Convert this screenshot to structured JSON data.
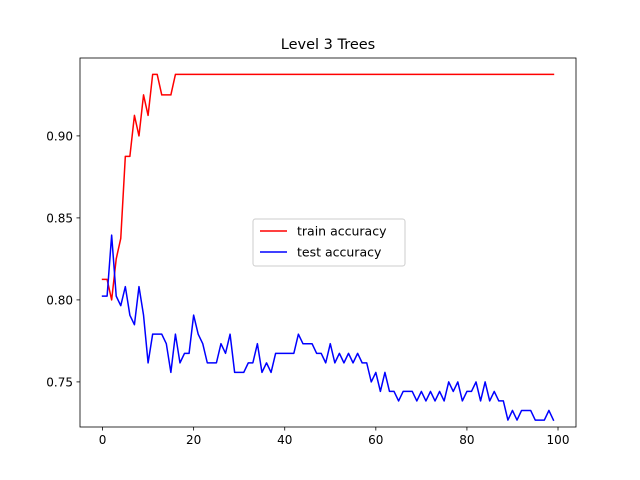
{
  "chart_data": {
    "type": "line",
    "title": "Level 3 Trees",
    "xlabel": "",
    "ylabel": "",
    "xlim": [
      -4.95,
      103.95
    ],
    "ylim": [
      0.7225,
      0.9475
    ],
    "xticks": [
      0,
      20,
      40,
      60,
      80,
      100
    ],
    "xtick_labels": [
      "0",
      "20",
      "40",
      "60",
      "80",
      "100"
    ],
    "yticks": [
      0.75,
      0.8,
      0.85,
      0.9
    ],
    "ytick_labels": [
      "0.75",
      "0.80",
      "0.85",
      "0.90"
    ],
    "grid": false,
    "legend_position": "center",
    "series": [
      {
        "name": "train accuracy",
        "color": "#ff0000",
        "x": [
          0,
          1,
          2,
          3,
          4,
          5,
          6,
          7,
          8,
          9,
          10,
          11,
          12,
          13,
          14,
          15,
          16,
          17,
          18,
          19,
          20,
          21,
          22,
          23,
          24,
          25,
          26,
          27,
          28,
          29,
          30,
          31,
          32,
          33,
          34,
          35,
          36,
          37,
          38,
          39,
          40,
          41,
          42,
          43,
          44,
          45,
          46,
          47,
          48,
          49,
          50,
          51,
          52,
          53,
          54,
          55,
          56,
          57,
          58,
          59,
          60,
          61,
          62,
          63,
          64,
          65,
          66,
          67,
          68,
          69,
          70,
          71,
          72,
          73,
          74,
          75,
          76,
          77,
          78,
          79,
          80,
          81,
          82,
          83,
          84,
          85,
          86,
          87,
          88,
          89,
          90,
          91,
          92,
          93,
          94,
          95,
          96,
          97,
          98,
          99
        ],
        "values": [
          0.8125,
          0.8125,
          0.8,
          0.825,
          0.8375,
          0.8875,
          0.8875,
          0.9125,
          0.9,
          0.925,
          0.9125,
          0.9375,
          0.9375,
          0.925,
          0.925,
          0.925,
          0.9375,
          0.9375,
          0.9375,
          0.9375,
          0.9375,
          0.9375,
          0.9375,
          0.9375,
          0.9375,
          0.9375,
          0.9375,
          0.9375,
          0.9375,
          0.9375,
          0.9375,
          0.9375,
          0.9375,
          0.9375,
          0.9375,
          0.9375,
          0.9375,
          0.9375,
          0.9375,
          0.9375,
          0.9375,
          0.9375,
          0.9375,
          0.9375,
          0.9375,
          0.9375,
          0.9375,
          0.9375,
          0.9375,
          0.9375,
          0.9375,
          0.9375,
          0.9375,
          0.9375,
          0.9375,
          0.9375,
          0.9375,
          0.9375,
          0.9375,
          0.9375,
          0.9375,
          0.9375,
          0.9375,
          0.9375,
          0.9375,
          0.9375,
          0.9375,
          0.9375,
          0.9375,
          0.9375,
          0.9375,
          0.9375,
          0.9375,
          0.9375,
          0.9375,
          0.9375,
          0.9375,
          0.9375,
          0.9375,
          0.9375,
          0.9375,
          0.9375,
          0.9375,
          0.9375,
          0.9375,
          0.9375,
          0.9375,
          0.9375,
          0.9375,
          0.9375,
          0.9375,
          0.9375,
          0.9375,
          0.9375,
          0.9375,
          0.9375,
          0.9375,
          0.9375,
          0.9375,
          0.9375
        ]
      },
      {
        "name": "test accuracy",
        "color": "#0000ff",
        "x": [
          0,
          1,
          2,
          3,
          4,
          5,
          6,
          7,
          8,
          9,
          10,
          11,
          12,
          13,
          14,
          15,
          16,
          17,
          18,
          19,
          20,
          21,
          22,
          23,
          24,
          25,
          26,
          27,
          28,
          29,
          30,
          31,
          32,
          33,
          34,
          35,
          36,
          37,
          38,
          39,
          40,
          41,
          42,
          43,
          44,
          45,
          46,
          47,
          48,
          49,
          50,
          51,
          52,
          53,
          54,
          55,
          56,
          57,
          58,
          59,
          60,
          61,
          62,
          63,
          64,
          65,
          66,
          67,
          68,
          69,
          70,
          71,
          72,
          73,
          74,
          75,
          76,
          77,
          78,
          79,
          80,
          81,
          82,
          83,
          84,
          85,
          86,
          87,
          88,
          89,
          90,
          91,
          92,
          93,
          94,
          95,
          96,
          97,
          98,
          99
        ],
        "values": [
          0.8023,
          0.8023,
          0.8395,
          0.8023,
          0.7965,
          0.8081,
          0.7907,
          0.7849,
          0.8081,
          0.7907,
          0.7616,
          0.7791,
          0.7791,
          0.7791,
          0.7733,
          0.7558,
          0.7791,
          0.7616,
          0.7674,
          0.7674,
          0.7907,
          0.7791,
          0.7733,
          0.7616,
          0.7616,
          0.7616,
          0.7733,
          0.7674,
          0.7791,
          0.7558,
          0.7558,
          0.7558,
          0.7616,
          0.7616,
          0.7733,
          0.7558,
          0.7616,
          0.7558,
          0.7674,
          0.7674,
          0.7674,
          0.7674,
          0.7674,
          0.7791,
          0.7733,
          0.7733,
          0.7733,
          0.7674,
          0.7674,
          0.7616,
          0.7733,
          0.7616,
          0.7674,
          0.7616,
          0.7674,
          0.7616,
          0.7674,
          0.7616,
          0.7616,
          0.75,
          0.7558,
          0.7442,
          0.7558,
          0.7442,
          0.7442,
          0.7384,
          0.7442,
          0.7442,
          0.7442,
          0.7384,
          0.7442,
          0.7384,
          0.7442,
          0.7384,
          0.7442,
          0.7384,
          0.75,
          0.7442,
          0.75,
          0.7384,
          0.7442,
          0.7442,
          0.75,
          0.7384,
          0.75,
          0.7384,
          0.7442,
          0.7384,
          0.7384,
          0.7267,
          0.7326,
          0.7267,
          0.7326,
          0.7326,
          0.7326,
          0.7267,
          0.7267,
          0.7267,
          0.7326,
          0.7267
        ]
      }
    ]
  }
}
